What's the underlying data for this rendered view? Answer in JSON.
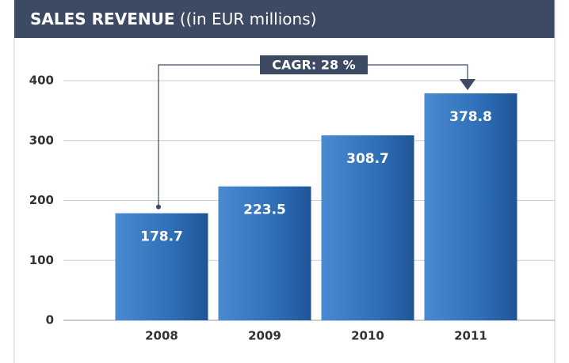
{
  "chart_data": {
    "type": "bar",
    "title": "SALES REVENUE",
    "subtitle": "((in EUR millions)",
    "categories": [
      "2008",
      "2009",
      "2010",
      "2011"
    ],
    "values": [
      178.7,
      223.5,
      308.7,
      378.8
    ],
    "color": "#2e6fb7",
    "ylim": [
      0,
      400
    ],
    "yticks": [
      0,
      100,
      200,
      300,
      400
    ],
    "grid": true,
    "annotation": "CAGR: 28 %"
  }
}
